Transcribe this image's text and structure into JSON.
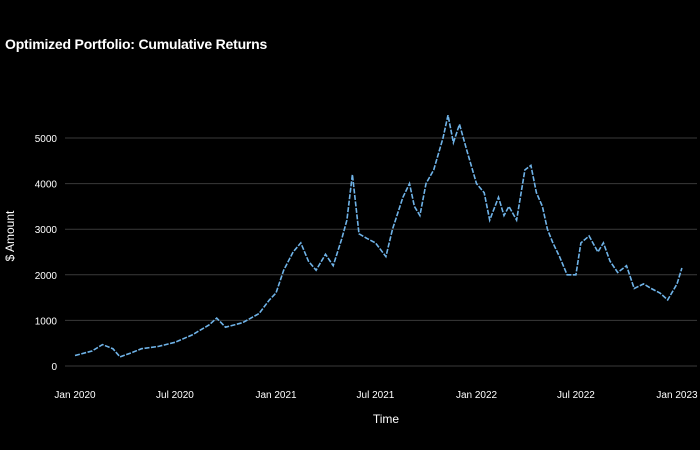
{
  "chart_data": {
    "type": "line",
    "title": "Optimized Portfolio: Cumulative Returns",
    "xlabel": "Time",
    "ylabel": "$ Amount",
    "ylim": [
      0,
      5600
    ],
    "yticks": [
      0,
      1000,
      2000,
      3000,
      4000,
      5000
    ],
    "xticks": [
      "Jan 2020",
      "Jul 2020",
      "Jan 2021",
      "Jul 2021",
      "Jan 2022",
      "Jul 2022",
      "Jan 2023"
    ],
    "grid": true,
    "line_color": "#6fb3e8",
    "background": "#000000",
    "series": [
      {
        "x": [
          "2020-01-01",
          "2020-02-01",
          "2020-02-20",
          "2020-03-10",
          "2020-03-23",
          "2020-04-15",
          "2020-05-01",
          "2020-06-01",
          "2020-07-01",
          "2020-08-01",
          "2020-09-01",
          "2020-09-15",
          "2020-10-01",
          "2020-11-01",
          "2020-12-01",
          "2020-12-20",
          "2021-01-01",
          "2021-01-15",
          "2021-02-01",
          "2021-02-15",
          "2021-03-01",
          "2021-03-15",
          "2021-04-01",
          "2021-04-15",
          "2021-05-01",
          "2021-05-10",
          "2021-05-20",
          "2021-06-01",
          "2021-06-15",
          "2021-07-01",
          "2021-07-20",
          "2021-08-01",
          "2021-08-20",
          "2021-09-01",
          "2021-09-10",
          "2021-09-20",
          "2021-10-01",
          "2021-10-15",
          "2021-11-01",
          "2021-11-10",
          "2021-11-20",
          "2021-12-01",
          "2021-12-15",
          "2022-01-01",
          "2022-01-15",
          "2022-01-25",
          "2022-02-10",
          "2022-02-20",
          "2022-03-01",
          "2022-03-15",
          "2022-03-30",
          "2022-04-10",
          "2022-04-20",
          "2022-05-01",
          "2022-05-10",
          "2022-05-20",
          "2022-06-01",
          "2022-06-15",
          "2022-07-01",
          "2022-07-10",
          "2022-07-25",
          "2022-08-10",
          "2022-08-20",
          "2022-09-01",
          "2022-09-15",
          "2022-10-01",
          "2022-10-15",
          "2022-11-01",
          "2022-11-15",
          "2022-12-01",
          "2022-12-15",
          "2023-01-01",
          "2023-01-10"
        ],
        "y": [
          230,
          330,
          470,
          380,
          200,
          300,
          380,
          430,
          520,
          680,
          900,
          1050,
          850,
          950,
          1150,
          1450,
          1600,
          2100,
          2500,
          2700,
          2300,
          2100,
          2450,
          2200,
          2800,
          3200,
          4200,
          2900,
          2800,
          2700,
          2400,
          3000,
          3700,
          4000,
          3500,
          3300,
          4000,
          4300,
          5000,
          5500,
          4900,
          5300,
          4700,
          4000,
          3800,
          3200,
          3700,
          3300,
          3500,
          3200,
          4300,
          4400,
          3800,
          3500,
          3000,
          2700,
          2400,
          2000,
          2000,
          2700,
          2850,
          2500,
          2700,
          2300,
          2050,
          2200,
          1700,
          1800,
          1700,
          1600,
          1450,
          1800,
          2150
        ]
      }
    ]
  }
}
